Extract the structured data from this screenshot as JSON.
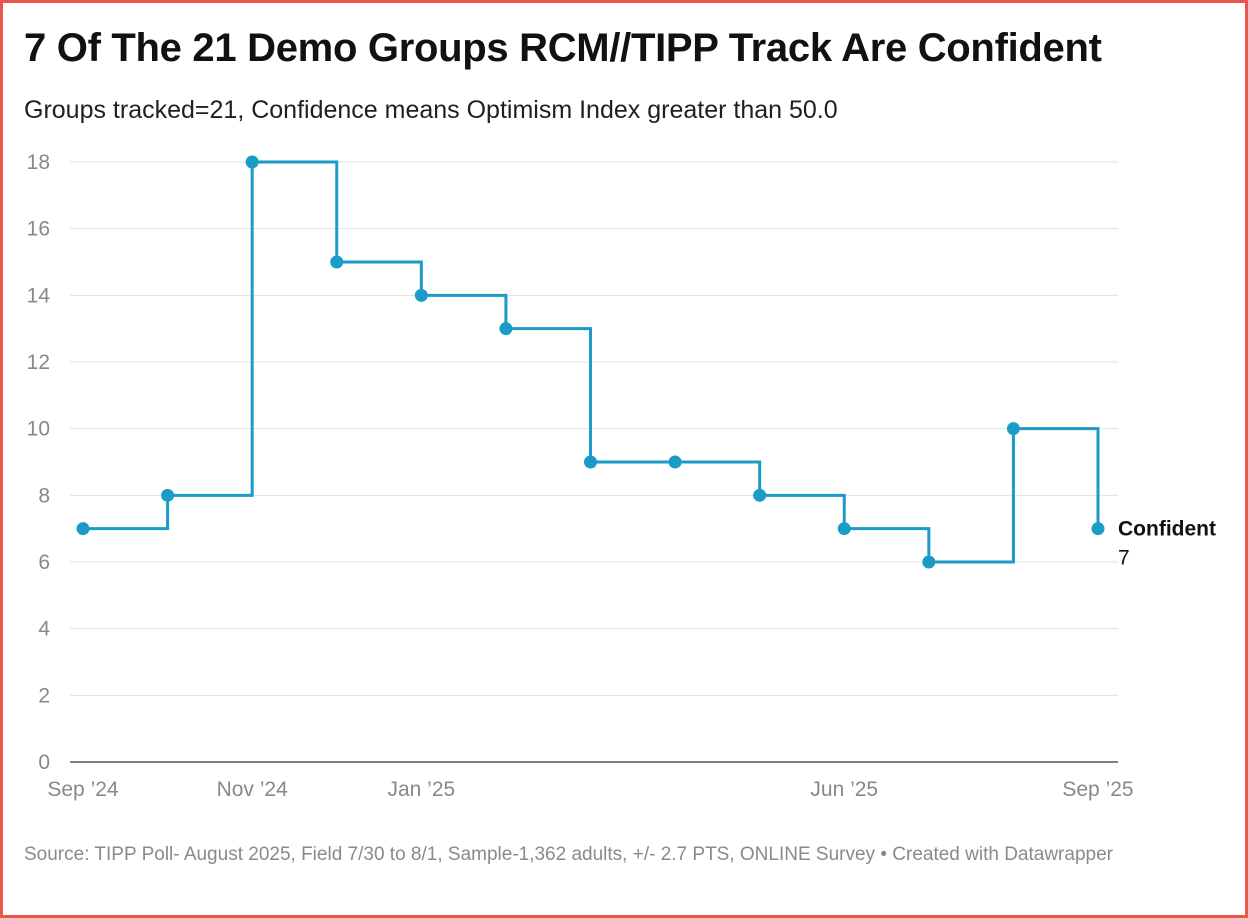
{
  "title": "7 Of The 21 Demo Groups RCM//TIPP Track Are Confident",
  "subtitle": "Groups tracked=21, Confidence means Optimism Index greater than 50.0",
  "footer": "Source: TIPP Poll- August 2025, Field 7/30 to 8/1, Sample-1,362 adults, +/- 2.7 PTS, ONLINE Survey • Created with Datawrapper",
  "colors": {
    "line": "#1a9bc8",
    "grid": "#e2e2e2",
    "border": "#e8574a"
  },
  "chart_data": {
    "type": "line",
    "interpolation": "step-after",
    "title": "7 Of The 21 Demo Groups RCM//TIPP Track Are Confident",
    "xlabel": "",
    "ylabel": "",
    "ylim": [
      0,
      18
    ],
    "yticks": [
      0,
      2,
      4,
      6,
      8,
      10,
      12,
      14,
      16,
      18
    ],
    "grid": true,
    "x_tick_labels": [
      {
        "label": "Sep ’24",
        "index": 0
      },
      {
        "label": "Nov ’24",
        "index": 2
      },
      {
        "label": "Jan ’25",
        "index": 4
      },
      {
        "label": "Jun ’25",
        "index": 9
      },
      {
        "label": "Sep ’25",
        "index": 12
      }
    ],
    "series": [
      {
        "name": "Confident",
        "end_label": "Confident",
        "end_value_label": "7",
        "x": [
          "Sep 2024",
          "Oct 2024",
          "Nov 2024",
          "Dec 2024",
          "Jan 2025",
          "Feb 2025",
          "Mar 2025",
          "Apr 2025",
          "May 2025",
          "Jun 2025",
          "Jul 2025",
          "Aug 2025",
          "Sep 2025"
        ],
        "values": [
          7,
          8,
          18,
          15,
          14,
          13,
          9,
          9,
          8,
          7,
          6,
          10,
          7
        ]
      }
    ]
  }
}
